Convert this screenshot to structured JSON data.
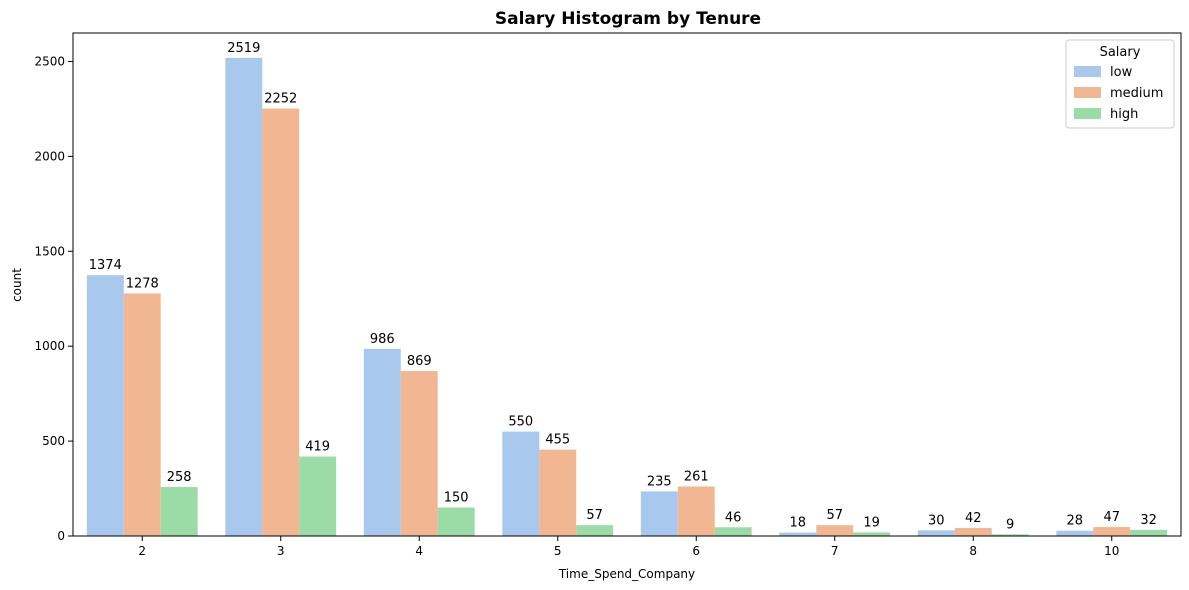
{
  "chart_data": {
    "type": "bar",
    "title": "Salary Histogram by Tenure",
    "xlabel": "Time_Spend_Company",
    "ylabel": "count",
    "categories": [
      "2",
      "3",
      "4",
      "5",
      "6",
      "7",
      "8",
      "10"
    ],
    "series": [
      {
        "name": "low",
        "color": "#a9c8ee",
        "values": [
          1374,
          2519,
          986,
          550,
          235,
          18,
          30,
          28
        ]
      },
      {
        "name": "medium",
        "color": "#f0b792",
        "values": [
          1278,
          2252,
          869,
          455,
          261,
          57,
          42,
          47
        ]
      },
      {
        "name": "high",
        "color": "#9bdba6",
        "values": [
          258,
          419,
          150,
          57,
          46,
          19,
          9,
          32
        ]
      }
    ],
    "ylim": [
      0,
      2650
    ],
    "yticks": [
      0,
      500,
      1000,
      1500,
      2000,
      2500
    ],
    "legend": {
      "title": "Salary",
      "placement": "top-right"
    },
    "grid": false
  }
}
